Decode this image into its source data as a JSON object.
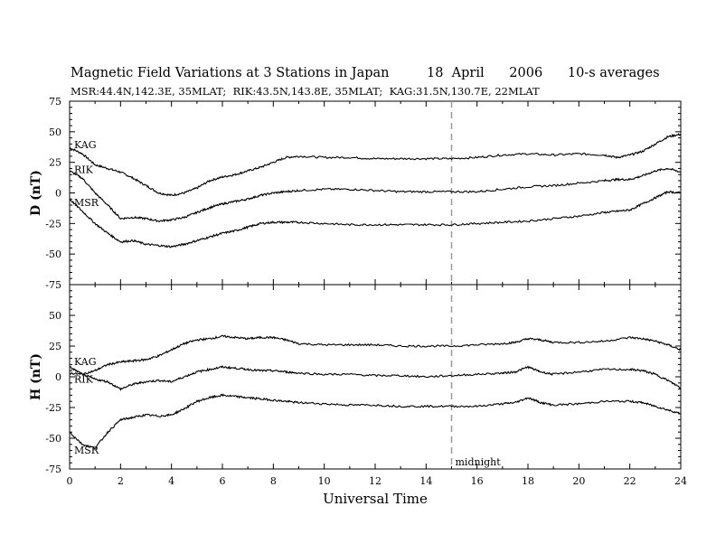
{
  "header": {
    "title": "Magnetic Field Variations at 3 Stations in Japan",
    "date": "18  April",
    "year": "2006",
    "averaging": "10-s averages",
    "subtitle": "MSR:44.4N,142.3E, 35MLAT;  RIK:43.5N,143.8E, 35MLAT;  KAG:31.5N,130.7E, 22MLAT"
  },
  "colors": {
    "trace": "#000000",
    "midnight_line": "#999999",
    "axes": "#000000"
  },
  "chart_data": [
    {
      "type": "line",
      "panel": "D",
      "ylabel": "D (nT)",
      "xlabel": "",
      "xlim": [
        0,
        24
      ],
      "ylim": [
        -75,
        75
      ],
      "yticks": [
        -75,
        -50,
        -25,
        0,
        25,
        50,
        75
      ],
      "series": [
        {
          "name": "KAG",
          "x": [
            0,
            0.5,
            1,
            1.5,
            2,
            2.5,
            3,
            3.5,
            4,
            4.5,
            5,
            5.5,
            6,
            6.5,
            7,
            7.5,
            8,
            8.5,
            9,
            10,
            11,
            12,
            13,
            14,
            15,
            16,
            17,
            18,
            19,
            20,
            21,
            21.5,
            22,
            22.5,
            23,
            23.5,
            24
          ],
          "values": [
            37,
            32,
            23,
            20,
            17,
            12,
            6,
            0,
            -2,
            0,
            4,
            10,
            13,
            15,
            18,
            21,
            25,
            29,
            30,
            29,
            29,
            28,
            28,
            28,
            28,
            29,
            31,
            32,
            31,
            32,
            31,
            29,
            31,
            34,
            40,
            46,
            48
          ]
        },
        {
          "name": "RIK",
          "x": [
            0,
            0.5,
            1,
            1.5,
            2,
            2.5,
            3,
            3.5,
            4,
            4.5,
            5,
            5.5,
            6,
            6.5,
            7,
            7.5,
            8,
            8.5,
            9,
            10,
            11,
            12,
            13,
            14,
            15,
            16,
            17,
            18,
            19,
            20,
            21,
            21.5,
            22,
            22.5,
            23,
            23.5,
            24
          ],
          "values": [
            18,
            12,
            0,
            -10,
            -21,
            -20,
            -21,
            -23,
            -22,
            -20,
            -16,
            -12,
            -9,
            -7,
            -5,
            -2,
            0,
            1,
            2,
            3,
            3,
            2,
            1,
            1,
            1,
            1,
            3,
            5,
            6,
            8,
            10,
            11,
            11,
            14,
            18,
            20,
            17
          ]
        },
        {
          "name": "MSR",
          "x": [
            0,
            0.5,
            1,
            1.5,
            2,
            2.5,
            3,
            3.5,
            4,
            4.5,
            5,
            5.5,
            6,
            6.5,
            7,
            7.5,
            8,
            8.5,
            9,
            10,
            11,
            12,
            13,
            14,
            15,
            16,
            17,
            18,
            19,
            20,
            21,
            21.5,
            22,
            22.5,
            23,
            23.5,
            24
          ],
          "values": [
            -5,
            -15,
            -25,
            -33,
            -40,
            -39,
            -42,
            -43,
            -44,
            -42,
            -39,
            -36,
            -33,
            -31,
            -28,
            -25,
            -24,
            -24,
            -24,
            -25,
            -26,
            -26,
            -26,
            -26,
            -26,
            -25,
            -24,
            -23,
            -21,
            -19,
            -16,
            -15,
            -14,
            -9,
            -4,
            1,
            0
          ]
        }
      ],
      "station_labels": [
        "KAG",
        "RIK",
        "MSR"
      ]
    },
    {
      "type": "line",
      "panel": "H",
      "ylabel": "H (nT)",
      "xlabel": "Universal Time",
      "xlim": [
        0,
        24
      ],
      "xticks": [
        0,
        2,
        4,
        6,
        8,
        10,
        12,
        14,
        16,
        18,
        20,
        22,
        24
      ],
      "ylim": [
        -75,
        75
      ],
      "yticks": [
        -75,
        -50,
        -25,
        0,
        25,
        50
      ],
      "series": [
        {
          "name": "KAG",
          "x": [
            0,
            0.5,
            1,
            1.5,
            2,
            2.5,
            3,
            3.5,
            4,
            4.5,
            5,
            5.5,
            6,
            6.5,
            7,
            7.5,
            8,
            8.5,
            9,
            10,
            11,
            12,
            13,
            14,
            15,
            16,
            17,
            17.5,
            18,
            18.5,
            19,
            20,
            21,
            22,
            22.5,
            23,
            23.5,
            24
          ],
          "values": [
            3,
            2,
            5,
            10,
            12,
            13,
            14,
            17,
            22,
            27,
            30,
            31,
            33,
            32,
            31,
            32,
            32,
            30,
            27,
            26,
            26,
            26,
            25,
            25,
            25,
            26,
            27,
            28,
            31,
            30,
            28,
            28,
            29,
            32,
            31,
            29,
            26,
            22
          ]
        },
        {
          "name": "RIK",
          "x": [
            0,
            0.5,
            1,
            1.5,
            2,
            2.5,
            3,
            3.5,
            4,
            4.5,
            5,
            5.5,
            6,
            6.5,
            7,
            7.5,
            8,
            8.5,
            9,
            10,
            11,
            12,
            13,
            14,
            15,
            16,
            17,
            17.5,
            18,
            18.5,
            19,
            20,
            21,
            22,
            22.5,
            23,
            23.5,
            24
          ],
          "values": [
            8,
            2,
            -2,
            -4,
            -10,
            -6,
            -4,
            -3,
            -4,
            0,
            4,
            6,
            8,
            7,
            6,
            5,
            5,
            4,
            3,
            2,
            2,
            1,
            1,
            0,
            1,
            2,
            3,
            4,
            8,
            4,
            2,
            4,
            6,
            6,
            5,
            2,
            -3,
            -9
          ]
        },
        {
          "name": "MSR",
          "x": [
            0,
            0.5,
            1,
            1.5,
            2,
            2.5,
            3,
            3.5,
            4,
            4.5,
            5,
            5.5,
            6,
            6.5,
            7,
            7.5,
            8,
            8.5,
            9,
            10,
            11,
            12,
            13,
            14,
            15,
            16,
            17,
            17.5,
            18,
            18.5,
            19,
            20,
            21,
            22,
            22.5,
            23,
            23.5,
            24
          ],
          "values": [
            -45,
            -55,
            -58,
            -45,
            -35,
            -33,
            -31,
            -32,
            -31,
            -26,
            -20,
            -17,
            -15,
            -16,
            -17,
            -18,
            -19,
            -20,
            -21,
            -22,
            -23,
            -23,
            -24,
            -24,
            -24,
            -24,
            -22,
            -21,
            -17,
            -21,
            -23,
            -22,
            -20,
            -20,
            -21,
            -24,
            -27,
            -30
          ]
        }
      ],
      "station_labels": [
        "KAG",
        "RIK",
        "MSR"
      ],
      "annotation": {
        "text": "midnight",
        "x": 15
      }
    }
  ]
}
